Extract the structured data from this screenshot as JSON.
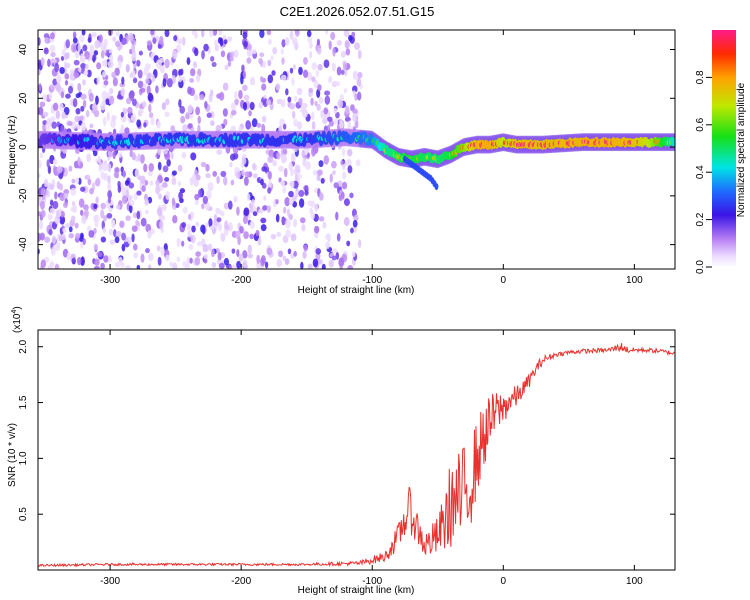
{
  "title": "C2E1.2026.052.07.51.G15",
  "top_panel": {
    "xlabel": "Height of straight line (km)",
    "ylabel": "Frequency (Hz)",
    "colorbar_label": "Normalized spectral amplitude"
  },
  "bottom_panel": {
    "xlabel": "Height of straight line (km)",
    "ylabel": "SNR (10 * v/v)",
    "multiplier_base": "(x10",
    "multiplier_exp": "4",
    "multiplier_close": ")"
  },
  "colors": {
    "line": "#e8312e",
    "colormap": [
      "#e9d6ff",
      "#c38cf5",
      "#8a2be2",
      "#2c19e6",
      "#1e8cff",
      "#00e5e5",
      "#16e016",
      "#bfe800",
      "#ffa000",
      "#ff2a00",
      "#ff1b8a"
    ]
  },
  "chart_data": [
    {
      "type": "heatmap",
      "title": "C2E1.2026.052.07.51.G15",
      "xlabel": "Height of straight line (km)",
      "ylabel": "Frequency (Hz)",
      "xlim": [
        -355,
        131
      ],
      "ylim": [
        -50,
        48
      ],
      "x_ticks": [
        -300,
        -200,
        -100,
        0,
        100
      ],
      "y_ticks": [
        -40,
        -20,
        0,
        20,
        40
      ],
      "colorbar": {
        "label": "Normalized spectral amplitude",
        "range": [
          0.0,
          1.0
        ],
        "ticks": [
          0.0,
          0.2,
          0.4,
          0.6,
          0.8
        ]
      },
      "ridge": {
        "x": [
          -350,
          -300,
          -250,
          -200,
          -150,
          -120,
          -100,
          -90,
          -80,
          -70,
          -60,
          -50,
          -40,
          -30,
          -20,
          -10,
          0,
          10,
          30,
          60,
          90,
          110,
          131
        ],
        "frequency": [
          3,
          2,
          3,
          3,
          3,
          4,
          3,
          -1,
          -4,
          -5,
          -4,
          -5,
          -3,
          0,
          1,
          1,
          2,
          1,
          1,
          2,
          2,
          2,
          2
        ],
        "amplitude": [
          0.22,
          0.3,
          0.3,
          0.3,
          0.3,
          0.35,
          0.4,
          0.55,
          0.6,
          0.62,
          0.6,
          0.58,
          0.62,
          0.75,
          0.9,
          0.92,
          0.8,
          0.88,
          0.88,
          0.9,
          0.9,
          0.82,
          0.5
        ]
      },
      "branch": {
        "x": [
          -75,
          -65,
          -55,
          -50
        ],
        "frequency": [
          -5,
          -9,
          -13,
          -17
        ]
      }
    },
    {
      "type": "line",
      "xlabel": "Height of straight line (km)",
      "ylabel": "SNR (10 * v/v)",
      "y_multiplier": 10000,
      "xlim": [
        -355,
        131
      ],
      "ylim": [
        0.0,
        2.15
      ],
      "x_ticks": [
        -300,
        -200,
        -100,
        0,
        100
      ],
      "y_ticks": [
        0.5,
        1.0,
        1.5,
        2.0
      ],
      "series": [
        {
          "x": [
            -355,
            -300,
            -250,
            -200,
            -150,
            -110,
            -90,
            -80,
            -72,
            -68,
            -60,
            -50,
            -44,
            -40,
            -35,
            -30,
            -25,
            -20,
            -15,
            -10,
            -5,
            0,
            5,
            10,
            15,
            20,
            25,
            30,
            40,
            50,
            60,
            80,
            90,
            95,
            100,
            110,
            120,
            131
          ],
          "y": [
            0.04,
            0.05,
            0.05,
            0.05,
            0.05,
            0.06,
            0.12,
            0.3,
            0.55,
            0.45,
            0.22,
            0.3,
            0.45,
            0.6,
            0.6,
            0.68,
            0.8,
            1.0,
            1.2,
            1.32,
            1.42,
            1.45,
            1.52,
            1.55,
            1.62,
            1.7,
            1.8,
            1.88,
            1.93,
            1.95,
            1.96,
            1.97,
            2.0,
            1.97,
            1.97,
            1.97,
            1.96,
            1.94
          ],
          "noise": [
            0.01,
            0.01,
            0.01,
            0.01,
            0.01,
            0.02,
            0.05,
            0.12,
            0.2,
            0.18,
            0.12,
            0.18,
            0.3,
            0.4,
            0.45,
            0.45,
            0.42,
            0.35,
            0.3,
            0.25,
            0.2,
            0.15,
            0.12,
            0.1,
            0.08,
            0.06,
            0.05,
            0.04,
            0.02,
            0.02,
            0.02,
            0.02,
            0.04,
            0.03,
            0.02,
            0.02,
            0.02,
            0.02
          ]
        }
      ]
    }
  ]
}
